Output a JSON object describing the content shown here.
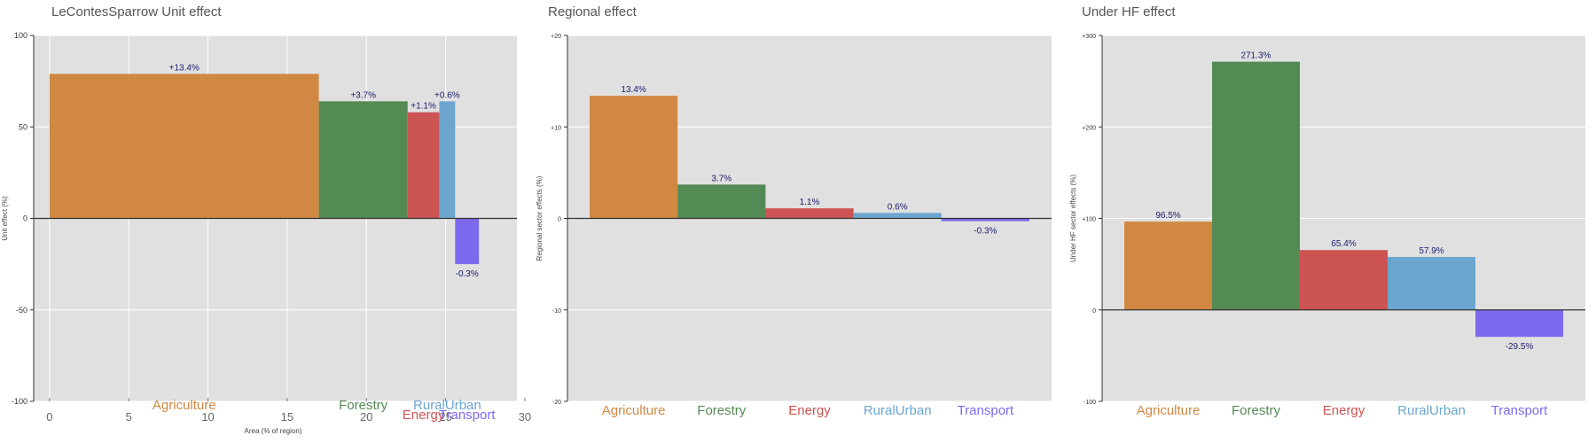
{
  "colors": {
    "Agriculture": "#D08843",
    "Forestry": "#548A54",
    "Energy": "#CC5452",
    "RuralUrban": "#6CA6CF",
    "Transport": "#7B6AEE",
    "panel_bg": "#E0E0E0",
    "grid": "#FFFFFF",
    "label_text": "#1A1A6E"
  },
  "chart_data": [
    {
      "type": "bar",
      "title": "LeContesSparrow Unit effect",
      "ylabel": "Unit effect (%)",
      "xlabel": "Area (% of region)",
      "ylim": [
        -100,
        100
      ],
      "yticks": [
        "100",
        "50",
        "0",
        "-50",
        "-100"
      ],
      "xlim": [
        -1,
        29.5
      ],
      "xticks": [
        "0",
        "5",
        "10",
        "15",
        "20",
        "25",
        "30"
      ],
      "grid": true,
      "bars": [
        {
          "name": "Agriculture",
          "x0": 0,
          "x1": 17.0,
          "value": 79,
          "label": "+13.4%"
        },
        {
          "name": "Forestry",
          "x0": 17.0,
          "x1": 22.6,
          "value": 64,
          "label": "+3.7%"
        },
        {
          "name": "Energy",
          "x0": 22.6,
          "x1": 24.6,
          "value": 58,
          "label": "+1.1%"
        },
        {
          "name": "RuralUrban",
          "x0": 24.6,
          "x1": 25.6,
          "value": 64,
          "label": "+0.6%"
        },
        {
          "name": "Transport",
          "x0": 25.6,
          "x1": 27.1,
          "value": -25,
          "label": "-0.3%"
        }
      ]
    },
    {
      "type": "bar",
      "title": "Regional effect",
      "ylabel": "Regional sector effects (%)",
      "ylim": [
        -20,
        20
      ],
      "yticks": [
        "+20",
        "+10",
        "0",
        "-10",
        "-20"
      ],
      "grid": true,
      "categories": [
        "Agriculture",
        "Forestry",
        "Energy",
        "RuralUrban",
        "Transport"
      ],
      "values": [
        13.4,
        3.7,
        1.1,
        0.6,
        -0.3
      ],
      "labels": [
        "13.4%",
        "3.7%",
        "1.1%",
        "0.6%",
        "-0.3%"
      ]
    },
    {
      "type": "bar",
      "title": "Under HF effect",
      "ylabel": "Under HF sector effects (%)",
      "ylim": [
        -100,
        300
      ],
      "yticks": [
        "+300",
        "+200",
        "+100",
        "0",
        "-100"
      ],
      "grid": true,
      "categories": [
        "Agriculture",
        "Forestry",
        "Energy",
        "RuralUrban",
        "Transport"
      ],
      "values": [
        96.5,
        271.3,
        65.4,
        57.9,
        -29.5
      ],
      "labels": [
        "96.5%",
        "271.3%",
        "65.4%",
        "57.9%",
        "-29.5%"
      ]
    }
  ]
}
